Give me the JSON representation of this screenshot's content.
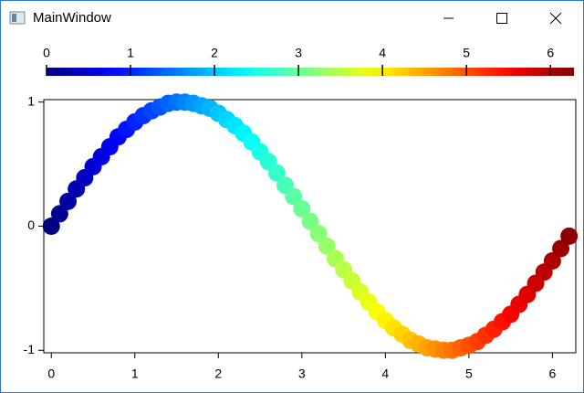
{
  "window": {
    "title": "MainWindow"
  },
  "chart_data": {
    "type": "scatter",
    "x": [
      0,
      0.1,
      0.2,
      0.3,
      0.4,
      0.5,
      0.6,
      0.7,
      0.8,
      0.9,
      1.0,
      1.1,
      1.2,
      1.3,
      1.4,
      1.5,
      1.6,
      1.7,
      1.8,
      1.9,
      2.0,
      2.1,
      2.2,
      2.3,
      2.4,
      2.5,
      2.6,
      2.7,
      2.8,
      2.9,
      3.0,
      3.1,
      3.2,
      3.3,
      3.4,
      3.5,
      3.6,
      3.7,
      3.8,
      3.9,
      4.0,
      4.1,
      4.2,
      4.3,
      4.4,
      4.5,
      4.6,
      4.7,
      4.8,
      4.9,
      5.0,
      5.1,
      5.2,
      5.3,
      5.4,
      5.5,
      5.6,
      5.7,
      5.8,
      5.9,
      6.0,
      6.1,
      6.2
    ],
    "values": [
      0,
      0.1,
      0.2,
      0.3,
      0.39,
      0.48,
      0.56,
      0.64,
      0.72,
      0.78,
      0.84,
      0.89,
      0.93,
      0.96,
      0.99,
      1.0,
      1.0,
      0.99,
      0.97,
      0.95,
      0.91,
      0.86,
      0.81,
      0.75,
      0.68,
      0.6,
      0.52,
      0.43,
      0.33,
      0.24,
      0.14,
      0.04,
      -0.06,
      -0.16,
      -0.26,
      -0.35,
      -0.44,
      -0.53,
      -0.61,
      -0.69,
      -0.76,
      -0.82,
      -0.87,
      -0.92,
      -0.95,
      -0.98,
      -0.99,
      -1.0,
      -1.0,
      -0.98,
      -0.96,
      -0.93,
      -0.88,
      -0.83,
      -0.77,
      -0.71,
      -0.63,
      -0.55,
      -0.46,
      -0.37,
      -0.28,
      -0.18,
      -0.08
    ],
    "colormap": "jet",
    "clim": [
      0,
      6.28
    ],
    "colorbar_ticks": [
      0,
      1,
      2,
      3,
      4,
      5,
      6
    ],
    "xlim": [
      -0.09,
      6.28
    ],
    "ylim": [
      -1.02,
      1.02
    ],
    "xticks": [
      0,
      1,
      2,
      3,
      4,
      5,
      6
    ],
    "yticks": [
      -1,
      0,
      1
    ]
  }
}
